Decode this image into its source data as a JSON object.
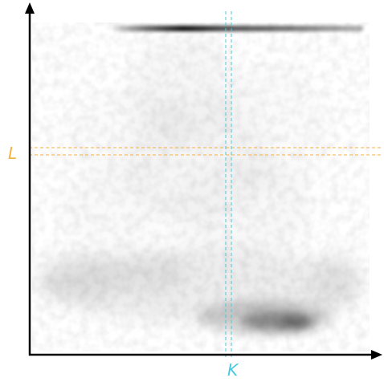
{
  "lines": {
    "horizontal": {
      "label": "L",
      "color": "#f5b041"
    },
    "vertical": {
      "label": "K",
      "color": "#48c9e0"
    }
  },
  "colors": {
    "axis": "#000000",
    "density": "#1a1a1a",
    "background": "#ffffff"
  }
}
